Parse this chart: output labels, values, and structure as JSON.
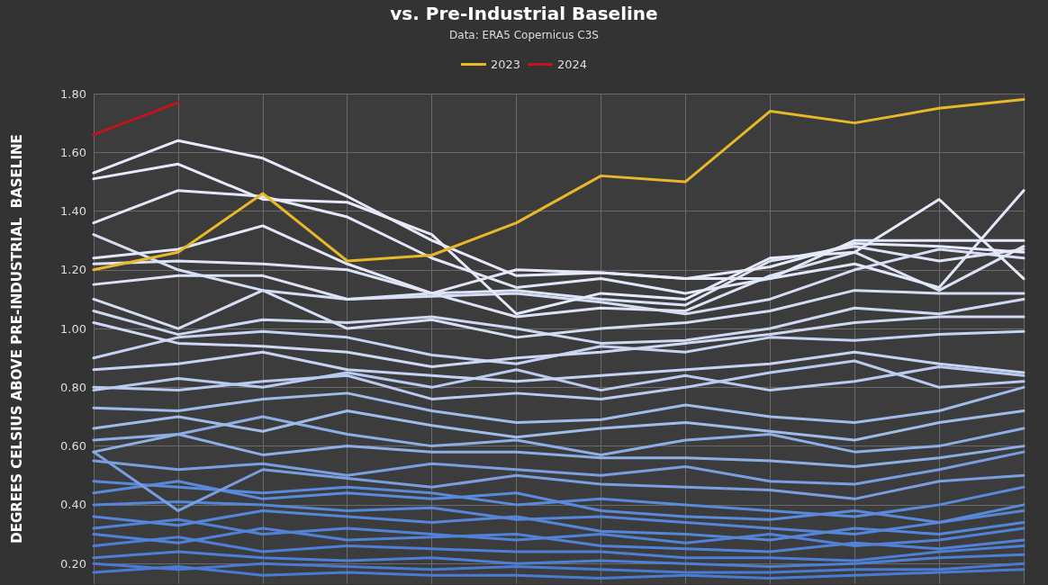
{
  "chart_data": {
    "type": "line",
    "title": "vs. Pre-Industrial Baseline",
    "subtitle": "Data: ERA5 Copernicus C3S",
    "ylabel": "DEGREES CELSIUS ABOVE PRE-INDUSTRIAL  BASELINE",
    "categories": [
      null,
      null,
      null,
      null,
      null,
      null,
      null,
      null,
      null,
      null,
      null,
      null
    ],
    "ylim": [
      0.13,
      1.8
    ],
    "yticks": [
      {
        "value": 0.2,
        "label": "0.20"
      },
      {
        "value": 0.4,
        "label": "0.40"
      },
      {
        "value": 0.6,
        "label": "0.60"
      },
      {
        "value": 0.8,
        "label": "0.80"
      },
      {
        "value": 1.0,
        "label": "1.00"
      },
      {
        "value": 1.2,
        "label": "1.20"
      },
      {
        "value": 1.4,
        "label": "1.40"
      },
      {
        "value": 1.6,
        "label": "1.60"
      },
      {
        "value": 1.8,
        "label": "1.80"
      }
    ],
    "grid": true,
    "legend": "top",
    "marker": "none",
    "line_style": "solid",
    "tick_labels": "y",
    "series": [
      {
        "color": "#4a7bd4",
        "values": [
          0.17,
          0.19,
          0.16,
          0.17,
          0.16,
          0.16,
          0.15,
          0.16,
          0.15,
          0.16,
          0.17,
          0.18
        ]
      },
      {
        "color": "#4a7bd4",
        "values": [
          0.2,
          0.18,
          0.2,
          0.19,
          0.18,
          0.19,
          0.18,
          0.17,
          0.17,
          0.18,
          0.18,
          0.2
        ]
      },
      {
        "color": "#4e7fd6",
        "values": [
          0.22,
          0.24,
          0.22,
          0.21,
          0.22,
          0.2,
          0.21,
          0.2,
          0.19,
          0.2,
          0.22,
          0.23
        ]
      },
      {
        "color": "#4e7fd6",
        "values": [
          0.26,
          0.29,
          0.24,
          0.26,
          0.25,
          0.24,
          0.24,
          0.22,
          0.22,
          0.21,
          0.24,
          0.26
        ]
      },
      {
        "color": "#5282d8",
        "values": [
          0.3,
          0.27,
          0.32,
          0.28,
          0.29,
          0.3,
          0.26,
          0.25,
          0.24,
          0.27,
          0.25,
          0.28
        ]
      },
      {
        "color": "#5282d8",
        "values": [
          0.32,
          0.35,
          0.3,
          0.32,
          0.3,
          0.28,
          0.3,
          0.27,
          0.3,
          0.26,
          0.28,
          0.32
        ]
      },
      {
        "color": "#5686d9",
        "values": [
          0.36,
          0.33,
          0.38,
          0.36,
          0.34,
          0.36,
          0.31,
          0.3,
          0.28,
          0.32,
          0.3,
          0.34
        ]
      },
      {
        "color": "#5686d9",
        "values": [
          0.4,
          0.41,
          0.4,
          0.38,
          0.39,
          0.35,
          0.36,
          0.34,
          0.32,
          0.3,
          0.34,
          0.38
        ]
      },
      {
        "color": "#5a8adb",
        "values": [
          0.44,
          0.48,
          0.42,
          0.44,
          0.42,
          0.44,
          0.38,
          0.36,
          0.35,
          0.38,
          0.34,
          0.4
        ]
      },
      {
        "color": "#5a8adb",
        "values": [
          0.48,
          0.46,
          0.44,
          0.46,
          0.44,
          0.4,
          0.42,
          0.4,
          0.38,
          0.36,
          0.4,
          0.46
        ]
      },
      {
        "color": "#7a9fe0",
        "values": [
          0.58,
          0.38,
          0.52,
          0.49,
          0.46,
          0.5,
          0.47,
          0.46,
          0.45,
          0.42,
          0.48,
          0.5
        ]
      },
      {
        "color": "#7a9fe0",
        "values": [
          0.55,
          0.52,
          0.54,
          0.5,
          0.54,
          0.52,
          0.5,
          0.53,
          0.48,
          0.47,
          0.52,
          0.58
        ]
      },
      {
        "color": "#8eaee6",
        "values": [
          0.58,
          0.64,
          0.57,
          0.6,
          0.58,
          0.58,
          0.56,
          0.56,
          0.55,
          0.53,
          0.56,
          0.6
        ]
      },
      {
        "color": "#8eaee6",
        "values": [
          0.62,
          0.64,
          0.7,
          0.64,
          0.6,
          0.62,
          0.57,
          0.62,
          0.64,
          0.58,
          0.6,
          0.66
        ]
      },
      {
        "color": "#a2bcea",
        "values": [
          0.66,
          0.7,
          0.65,
          0.72,
          0.67,
          0.63,
          0.66,
          0.68,
          0.65,
          0.62,
          0.68,
          0.72
        ]
      },
      {
        "color": "#a2bcea",
        "values": [
          0.73,
          0.72,
          0.76,
          0.78,
          0.72,
          0.68,
          0.69,
          0.74,
          0.7,
          0.68,
          0.72,
          0.8
        ]
      },
      {
        "color": "#b9cbf0",
        "values": [
          0.8,
          0.79,
          0.82,
          0.84,
          0.76,
          0.78,
          0.76,
          0.8,
          0.85,
          0.89,
          0.8,
          0.82
        ]
      },
      {
        "color": "#b9cbf0",
        "values": [
          0.79,
          0.83,
          0.8,
          0.85,
          0.8,
          0.86,
          0.79,
          0.84,
          0.79,
          0.82,
          0.87,
          0.84
        ]
      },
      {
        "color": "#c6d3f2",
        "values": [
          0.86,
          0.88,
          0.92,
          0.86,
          0.84,
          0.82,
          0.84,
          0.86,
          0.88,
          0.92,
          0.88,
          0.85
        ]
      },
      {
        "color": "#c6d3f2",
        "values": [
          0.9,
          0.97,
          0.99,
          0.97,
          0.91,
          0.88,
          0.94,
          0.92,
          0.97,
          0.96,
          0.98,
          0.99
        ]
      },
      {
        "color": "#cfd9f4",
        "values": [
          1.02,
          0.95,
          0.94,
          0.92,
          0.87,
          0.9,
          0.92,
          0.95,
          0.98,
          1.02,
          1.04,
          1.04
        ]
      },
      {
        "color": "#cfd9f4",
        "values": [
          1.06,
          0.98,
          1.03,
          1.02,
          1.04,
          1.0,
          0.95,
          0.96,
          1.0,
          1.07,
          1.05,
          1.1
        ]
      },
      {
        "color": "#d6def6",
        "values": [
          1.1,
          1.0,
          1.13,
          1.0,
          1.03,
          0.97,
          1.0,
          1.02,
          1.06,
          1.13,
          1.12,
          1.12
        ]
      },
      {
        "color": "#d6def6",
        "values": [
          1.32,
          1.2,
          1.13,
          1.1,
          1.11,
          1.12,
          1.09,
          1.05,
          1.1,
          1.2,
          1.27,
          1.24
        ]
      },
      {
        "color": "#dde3f7",
        "values": [
          1.15,
          1.18,
          1.18,
          1.1,
          1.12,
          1.13,
          1.1,
          1.08,
          1.23,
          1.28,
          1.23,
          1.27
        ]
      },
      {
        "color": "#dde3f7",
        "values": [
          1.22,
          1.23,
          1.22,
          1.2,
          1.12,
          1.04,
          1.07,
          1.06,
          1.18,
          1.26,
          1.13,
          1.28
        ]
      },
      {
        "color": "#e2e7f9",
        "values": [
          1.24,
          1.27,
          1.35,
          1.22,
          1.12,
          1.2,
          1.19,
          1.17,
          1.17,
          1.3,
          1.3,
          1.3
        ]
      },
      {
        "color": "#e2e7f9",
        "values": [
          1.36,
          1.47,
          1.45,
          1.38,
          1.24,
          1.14,
          1.17,
          1.12,
          1.17,
          1.22,
          1.14,
          1.47
        ]
      },
      {
        "color": "#e6eafa",
        "values": [
          1.51,
          1.56,
          1.44,
          1.43,
          1.32,
          1.05,
          1.12,
          1.1,
          1.24,
          1.26,
          1.44,
          1.17
        ]
      },
      {
        "color": "#e6eafa",
        "values": [
          1.53,
          1.64,
          1.58,
          1.45,
          1.3,
          1.18,
          1.19,
          1.17,
          1.21,
          1.29,
          1.28,
          1.26
        ]
      },
      {
        "name": "2023",
        "color": "#e8b829",
        "values": [
          1.2,
          1.26,
          1.46,
          1.23,
          1.25,
          1.36,
          1.52,
          1.5,
          1.74,
          1.7,
          1.75,
          1.78
        ]
      },
      {
        "name": "2024",
        "color": "#c0151a",
        "values": [
          1.66,
          1.77,
          null,
          null,
          null,
          null,
          null,
          null,
          null,
          null,
          null,
          null
        ]
      }
    ]
  }
}
